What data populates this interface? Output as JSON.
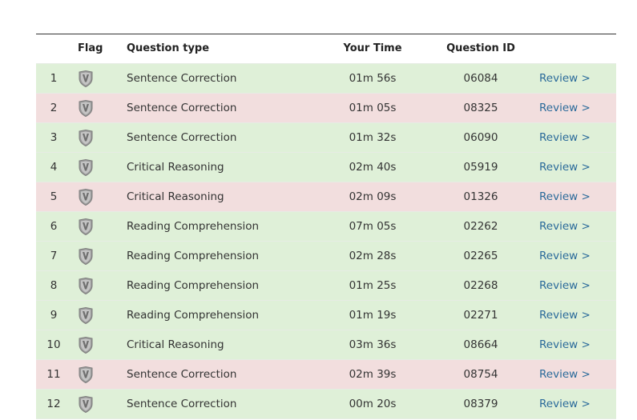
{
  "header": {
    "flag": "Flag",
    "type": "Question type",
    "time": "Your Time",
    "id": "Question ID"
  },
  "rows": [
    {
      "number": 1,
      "type": "Sentence Correction",
      "time": "01m 56s",
      "id": "06084",
      "link": "Review >",
      "color": "#dff0d8"
    },
    {
      "number": 2,
      "type": "Sentence Correction",
      "time": "01m 05s",
      "id": "08325",
      "link": "Review >",
      "color": "#f2dede"
    },
    {
      "number": 3,
      "type": "Sentence Correction",
      "time": "01m 32s",
      "id": "06090",
      "link": "Review >",
      "color": "#dff0d8"
    },
    {
      "number": 4,
      "type": "Critical Reasoning",
      "time": "02m 40s",
      "id": "05919",
      "link": "Review >",
      "color": "#dff0d8"
    },
    {
      "number": 5,
      "type": "Critical Reasoning",
      "time": "02m 09s",
      "id": "01326",
      "link": "Review >",
      "color": "#f2dede"
    },
    {
      "number": 6,
      "type": "Reading Comprehension",
      "time": "07m 05s",
      "id": "02262",
      "link": "Review >",
      "color": "#dff0d8"
    },
    {
      "number": 7,
      "type": "Reading Comprehension",
      "time": "02m 28s",
      "id": "02265",
      "link": "Review >",
      "color": "#dff0d8"
    },
    {
      "number": 8,
      "type": "Reading Comprehension",
      "time": "01m 25s",
      "id": "02268",
      "link": "Review >",
      "color": "#dff0d8"
    },
    {
      "number": 9,
      "type": "Reading Comprehension",
      "time": "01m 19s",
      "id": "02271",
      "link": "Review >",
      "color": "#dff0d8"
    },
    {
      "number": 10,
      "type": "Critical Reasoning",
      "time": "03m 36s",
      "id": "08664",
      "link": "Review >",
      "color": "#dff0d8"
    },
    {
      "number": 11,
      "type": "Sentence Correction",
      "time": "02m 39s",
      "id": "08754",
      "link": "Review >",
      "color": "#f2dede"
    },
    {
      "number": 12,
      "type": "Sentence Correction",
      "time": "00m 20s",
      "id": "08379",
      "link": "Review >",
      "color": "#dff0d8"
    }
  ]
}
